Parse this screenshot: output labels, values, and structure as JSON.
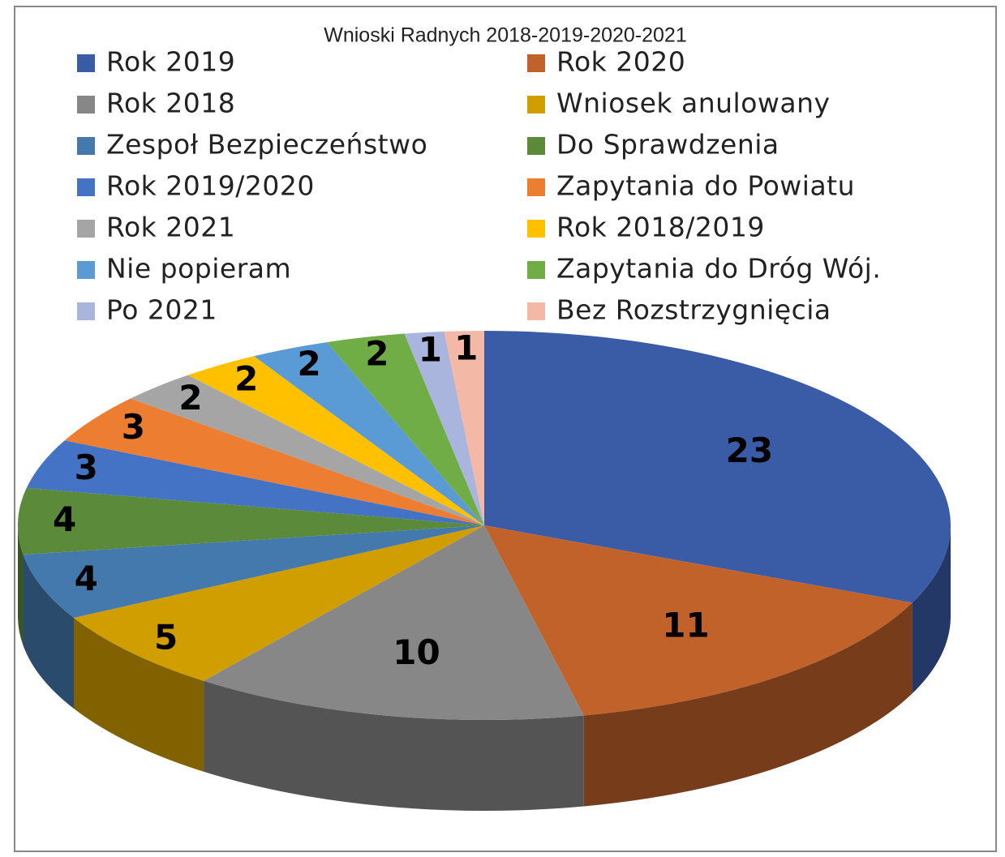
{
  "chart_data": {
    "type": "pie3d",
    "title": "Wnioski Radnych 2018-2019-2020-2021",
    "categories": [
      "Rok 2019",
      "Rok 2020",
      "Rok 2018",
      "Wniosek anulowany",
      "Zespoł Bezpieczeństwo",
      "Do Sprawdzenia",
      "Rok 2019/2020",
      "Zapytania do Powiatu",
      "Rok 2021",
      "Rok 2018/2019",
      "Nie popieram",
      "Zapytania do Dróg Wój.",
      "Po 2021",
      "Bez Rozstrzygnięcia"
    ],
    "values": [
      23,
      11,
      10,
      5,
      4,
      4,
      3,
      3,
      2,
      2,
      2,
      2,
      1,
      1
    ],
    "colors": [
      "#3a5ba6",
      "#c0622a",
      "#878787",
      "#d19e00",
      "#4479ad",
      "#5b8b3a",
      "#4472c4",
      "#ed7d31",
      "#a5a5a5",
      "#ffc000",
      "#5b9bd5",
      "#70ad47",
      "#a9b5dc",
      "#f4b8a6"
    ],
    "legend": "top"
  }
}
